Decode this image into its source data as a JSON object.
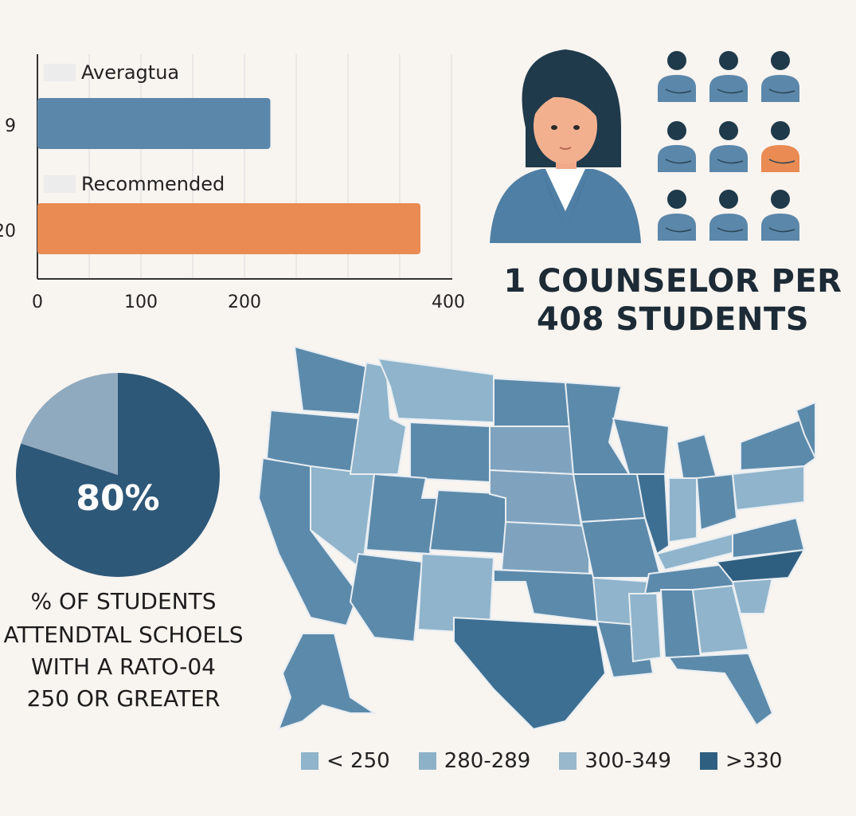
{
  "chart_data": [
    {
      "type": "bar",
      "orientation": "horizontal",
      "categories": [
        "Averagtua",
        "Recommended"
      ],
      "category_side_labels": [
        "9",
        "20"
      ],
      "values": [
        225,
        370
      ],
      "colors": [
        "#5b87aa",
        "#e98b52"
      ],
      "xlim": [
        0,
        400
      ],
      "xticks": [
        0,
        100,
        200,
        400
      ],
      "grid": true
    },
    {
      "type": "pie",
      "values": [
        80,
        20
      ],
      "colors": [
        "#2e5878",
        "#8fa9bf"
      ],
      "label": "80%"
    }
  ],
  "headline": {
    "line1": "1 COUNSELOR PER",
    "line2": "408 STUDENTS"
  },
  "pie_caption": {
    "line1": "% OF STUDENTS",
    "line2": "ATTENDTAL SCHOELS",
    "line3": "WITH A RATO-04",
    "line4": "250 OR GREATER"
  },
  "legend": [
    {
      "label": "< 250",
      "color": "#8fb4cb"
    },
    {
      "label": "280-289",
      "color": "#8db2c8"
    },
    {
      "label": "300-349",
      "color": "#99b8cc"
    },
    {
      "label": ">330",
      "color": "#2f5f80"
    }
  ],
  "people_grid": {
    "rows": 3,
    "cols": 3,
    "highlight_index": 5,
    "base_color": "#5b87aa",
    "head_color": "#1f3a4a",
    "highlight_color": "#e98b52",
    "icon": "person-icon"
  },
  "colors": {
    "background": "#f8f4f0",
    "map_dark": "#3d6f92",
    "map_mid": "#5c8aab",
    "map_light": "#8fb4cb"
  }
}
